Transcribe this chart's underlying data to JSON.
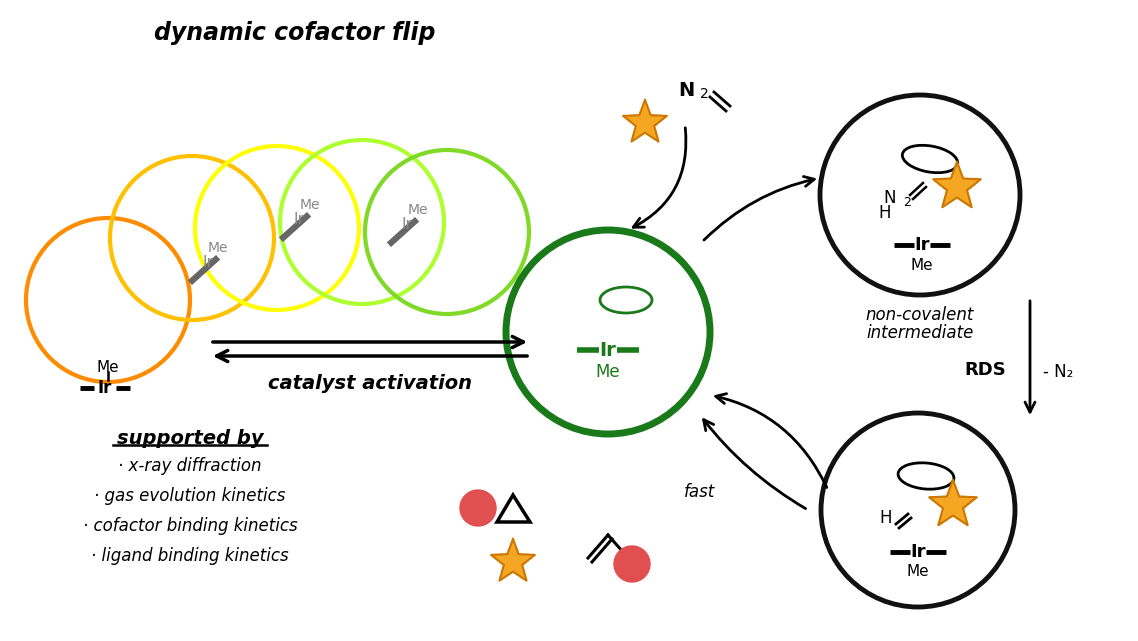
{
  "dynamic_cofactor_flip_text": "dynamic cofactor flip",
  "catalyst_activation_text": "catalyst activation",
  "supported_by_title": "supported by",
  "supported_by_items": [
    "· x-ray diffraction",
    "· gas evolution kinetics",
    "· cofactor binding kinetics",
    "· ligand binding kinetics"
  ],
  "non_covalent_line1": "non-covalent",
  "non_covalent_line2": "intermediate",
  "rds_text": "RDS",
  "minus_n2_text": "- N₂",
  "fast_text": "fast",
  "flip_colors": [
    "#FF8C00",
    "#FFC000",
    "#FFFF00",
    "#ADFF2F",
    "#7FD926"
  ],
  "green_circle_color": "#1a7a1a",
  "black_circle_color": "#111111",
  "gray_color": "#888888",
  "orange_star_fill": "#F5A623",
  "orange_star_edge": "#CC7700",
  "red_circle_color": "#E05050",
  "background": "#ffffff"
}
